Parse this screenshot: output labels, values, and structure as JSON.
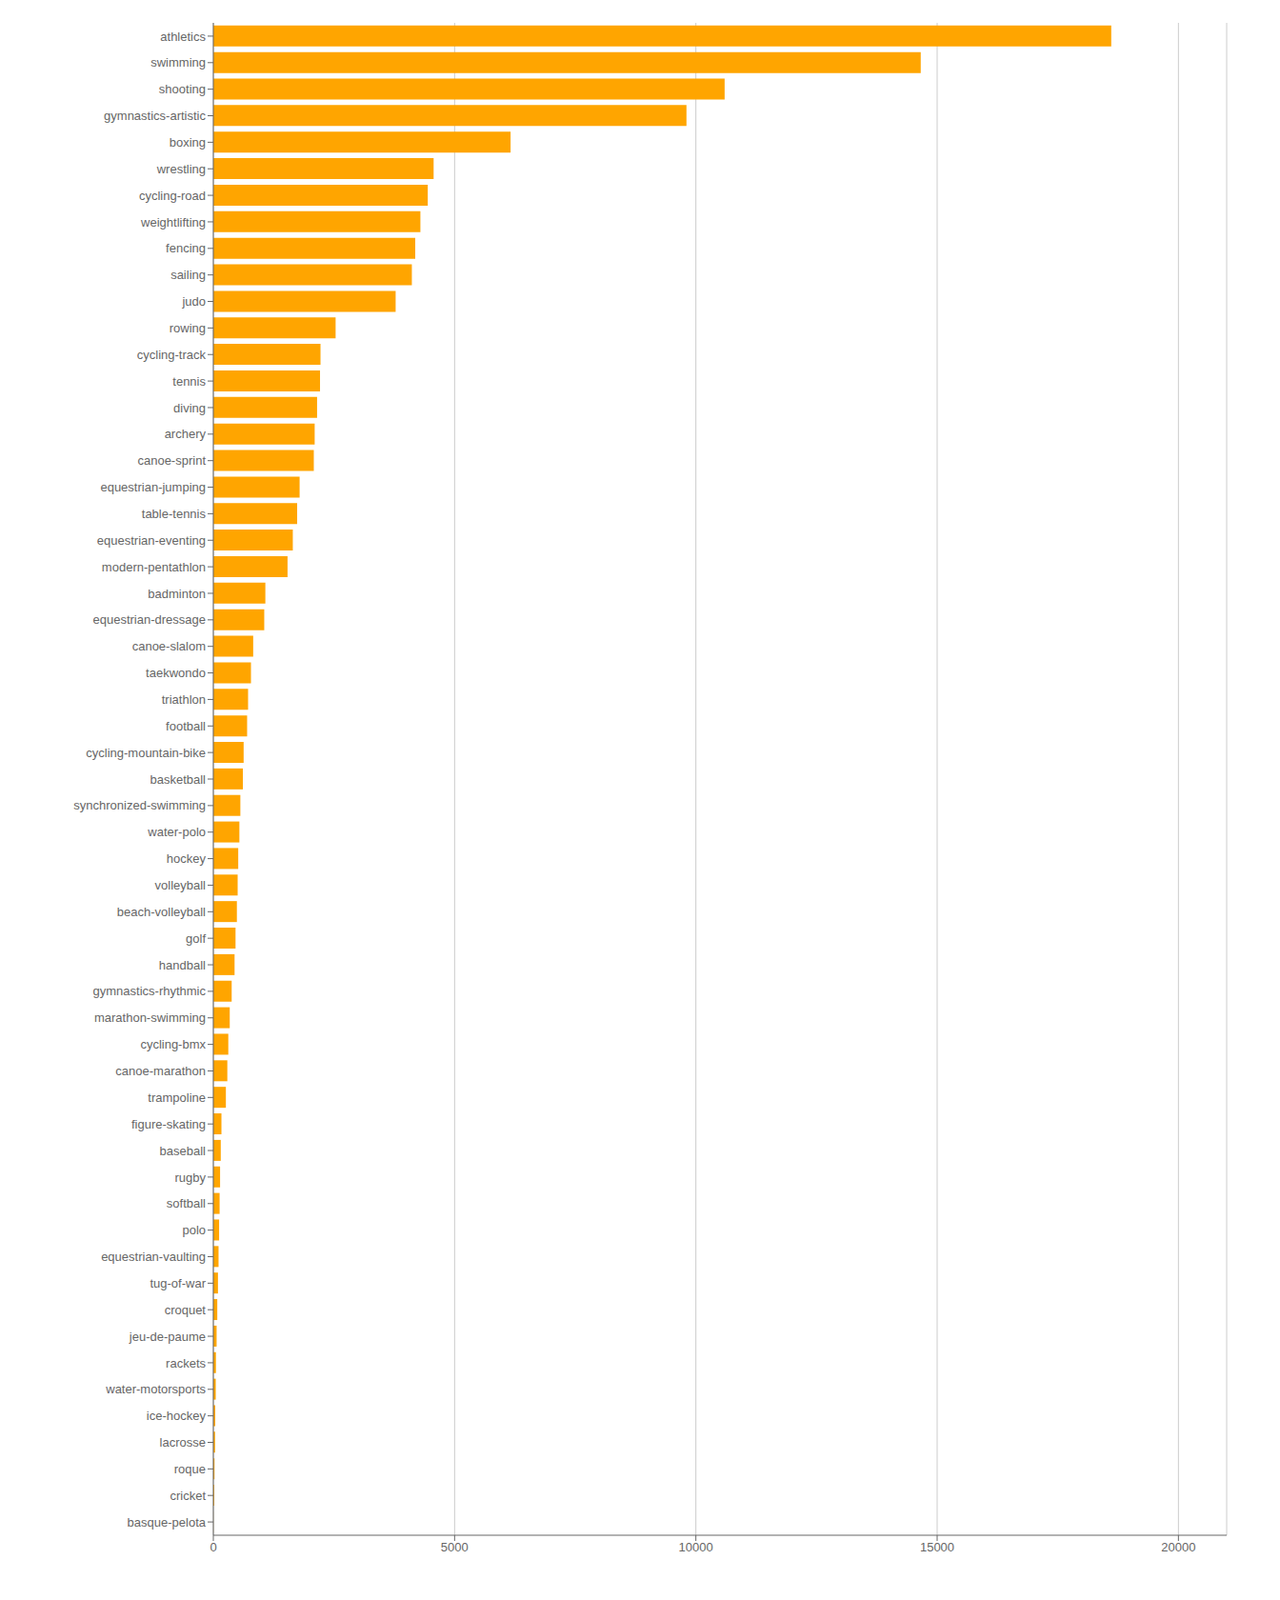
{
  "chart_data": {
    "type": "bar",
    "orientation": "horizontal",
    "categories": [
      "athletics",
      "swimming",
      "shooting",
      "gymnastics-artistic",
      "boxing",
      "wrestling",
      "cycling-road",
      "weightlifting",
      "fencing",
      "sailing",
      "judo",
      "rowing",
      "cycling-track",
      "tennis",
      "diving",
      "archery",
      "canoe-sprint",
      "equestrian-jumping",
      "table-tennis",
      "equestrian-eventing",
      "modern-pentathlon",
      "badminton",
      "equestrian-dressage",
      "canoe-slalom",
      "taekwondo",
      "triathlon",
      "football",
      "cycling-mountain-bike",
      "basketball",
      "synchronized-swimming",
      "water-polo",
      "hockey",
      "volleyball",
      "beach-volleyball",
      "golf",
      "handball",
      "gymnastics-rhythmic",
      "marathon-swimming",
      "cycling-bmx",
      "canoe-marathon",
      "trampoline",
      "figure-skating",
      "baseball",
      "rugby",
      "softball",
      "polo",
      "equestrian-vaulting",
      "tug-of-war",
      "croquet",
      "jeu-de-paume",
      "rackets",
      "water-motorsports",
      "ice-hockey",
      "lacrosse",
      "roque",
      "cricket",
      "basque-pelota"
    ],
    "values": [
      18608,
      14660,
      10596,
      9805,
      6160,
      4565,
      4444,
      4291,
      4184,
      4114,
      3778,
      2534,
      2221,
      2211,
      2150,
      2100,
      2082,
      1788,
      1737,
      1647,
      1538,
      1078,
      1055,
      826,
      780,
      720,
      700,
      628,
      612,
      560,
      540,
      516,
      504,
      488,
      460,
      440,
      380,
      340,
      310,
      290,
      260,
      168,
      154,
      140,
      130,
      120,
      108,
      96,
      82,
      68,
      54,
      50,
      40,
      36,
      24,
      18,
      2
    ],
    "color": "#FFA500",
    "xlim": [
      0,
      21000
    ],
    "xticks": [
      0,
      5000,
      10000,
      15000,
      20000
    ],
    "grid": true
  }
}
